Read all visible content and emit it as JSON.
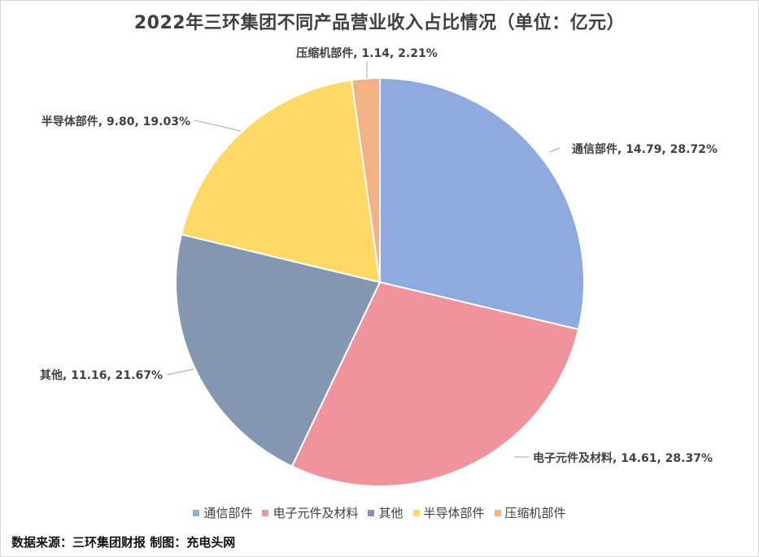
{
  "chart_data": {
    "type": "pie",
    "title": "2022年三环集团不同产品营业收入占比情况（单位：亿元）",
    "categories": [
      "通信部件",
      "电子元件及材料",
      "其他",
      "半导体部件",
      "压缩机部件"
    ],
    "values": [
      14.79,
      14.61,
      11.16,
      9.8,
      1.14
    ],
    "percentages": [
      "28.72%",
      "28.37%",
      "21.67%",
      "19.03%",
      "2.21%"
    ],
    "data_labels": [
      "通信部件, 14.79, 28.72%",
      "电子元件及材料, 14.61, 28.37%",
      "其他, 11.16, 21.67%",
      "半导体部件, 9.80, 19.03%",
      "压缩机部件, 1.14, 2.21%"
    ],
    "colors": [
      "#8eaadf",
      "#ef949d",
      "#8497b0",
      "#fed966",
      "#f4b183"
    ],
    "legend_position": "bottom",
    "start_angle": "12 o'clock, clockwise"
  },
  "source": "数据来源：三环集团财报  制图：充电头网"
}
